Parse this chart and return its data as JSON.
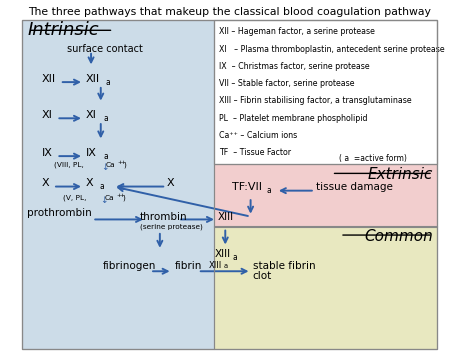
{
  "title": "The three pathways that makeup the classical blood coagulation pathway",
  "bg_color": "#ffffff",
  "intrinsic_color": "#ccdce8",
  "extrinsic_color": "#f2cece",
  "common_color": "#e8e8c0",
  "legend_bg": "#ffffff",
  "arrow_color": "#3060a8",
  "legend_lines": [
    "XII – Hageman factor, a serine protease",
    "XI   – Plasma thromboplastin, antecedent serine protease",
    "IX  – Christmas factor, serine protease",
    "VII – Stable factor, serine protease",
    "XIII – Fibrin stabilising factor, a transglutaminase",
    "PL  – Platelet membrane phospholipid",
    "Ca⁺⁺ – Calcium ions",
    "TF  – Tissue Factor"
  ],
  "legend_note": "( a  =active form)"
}
